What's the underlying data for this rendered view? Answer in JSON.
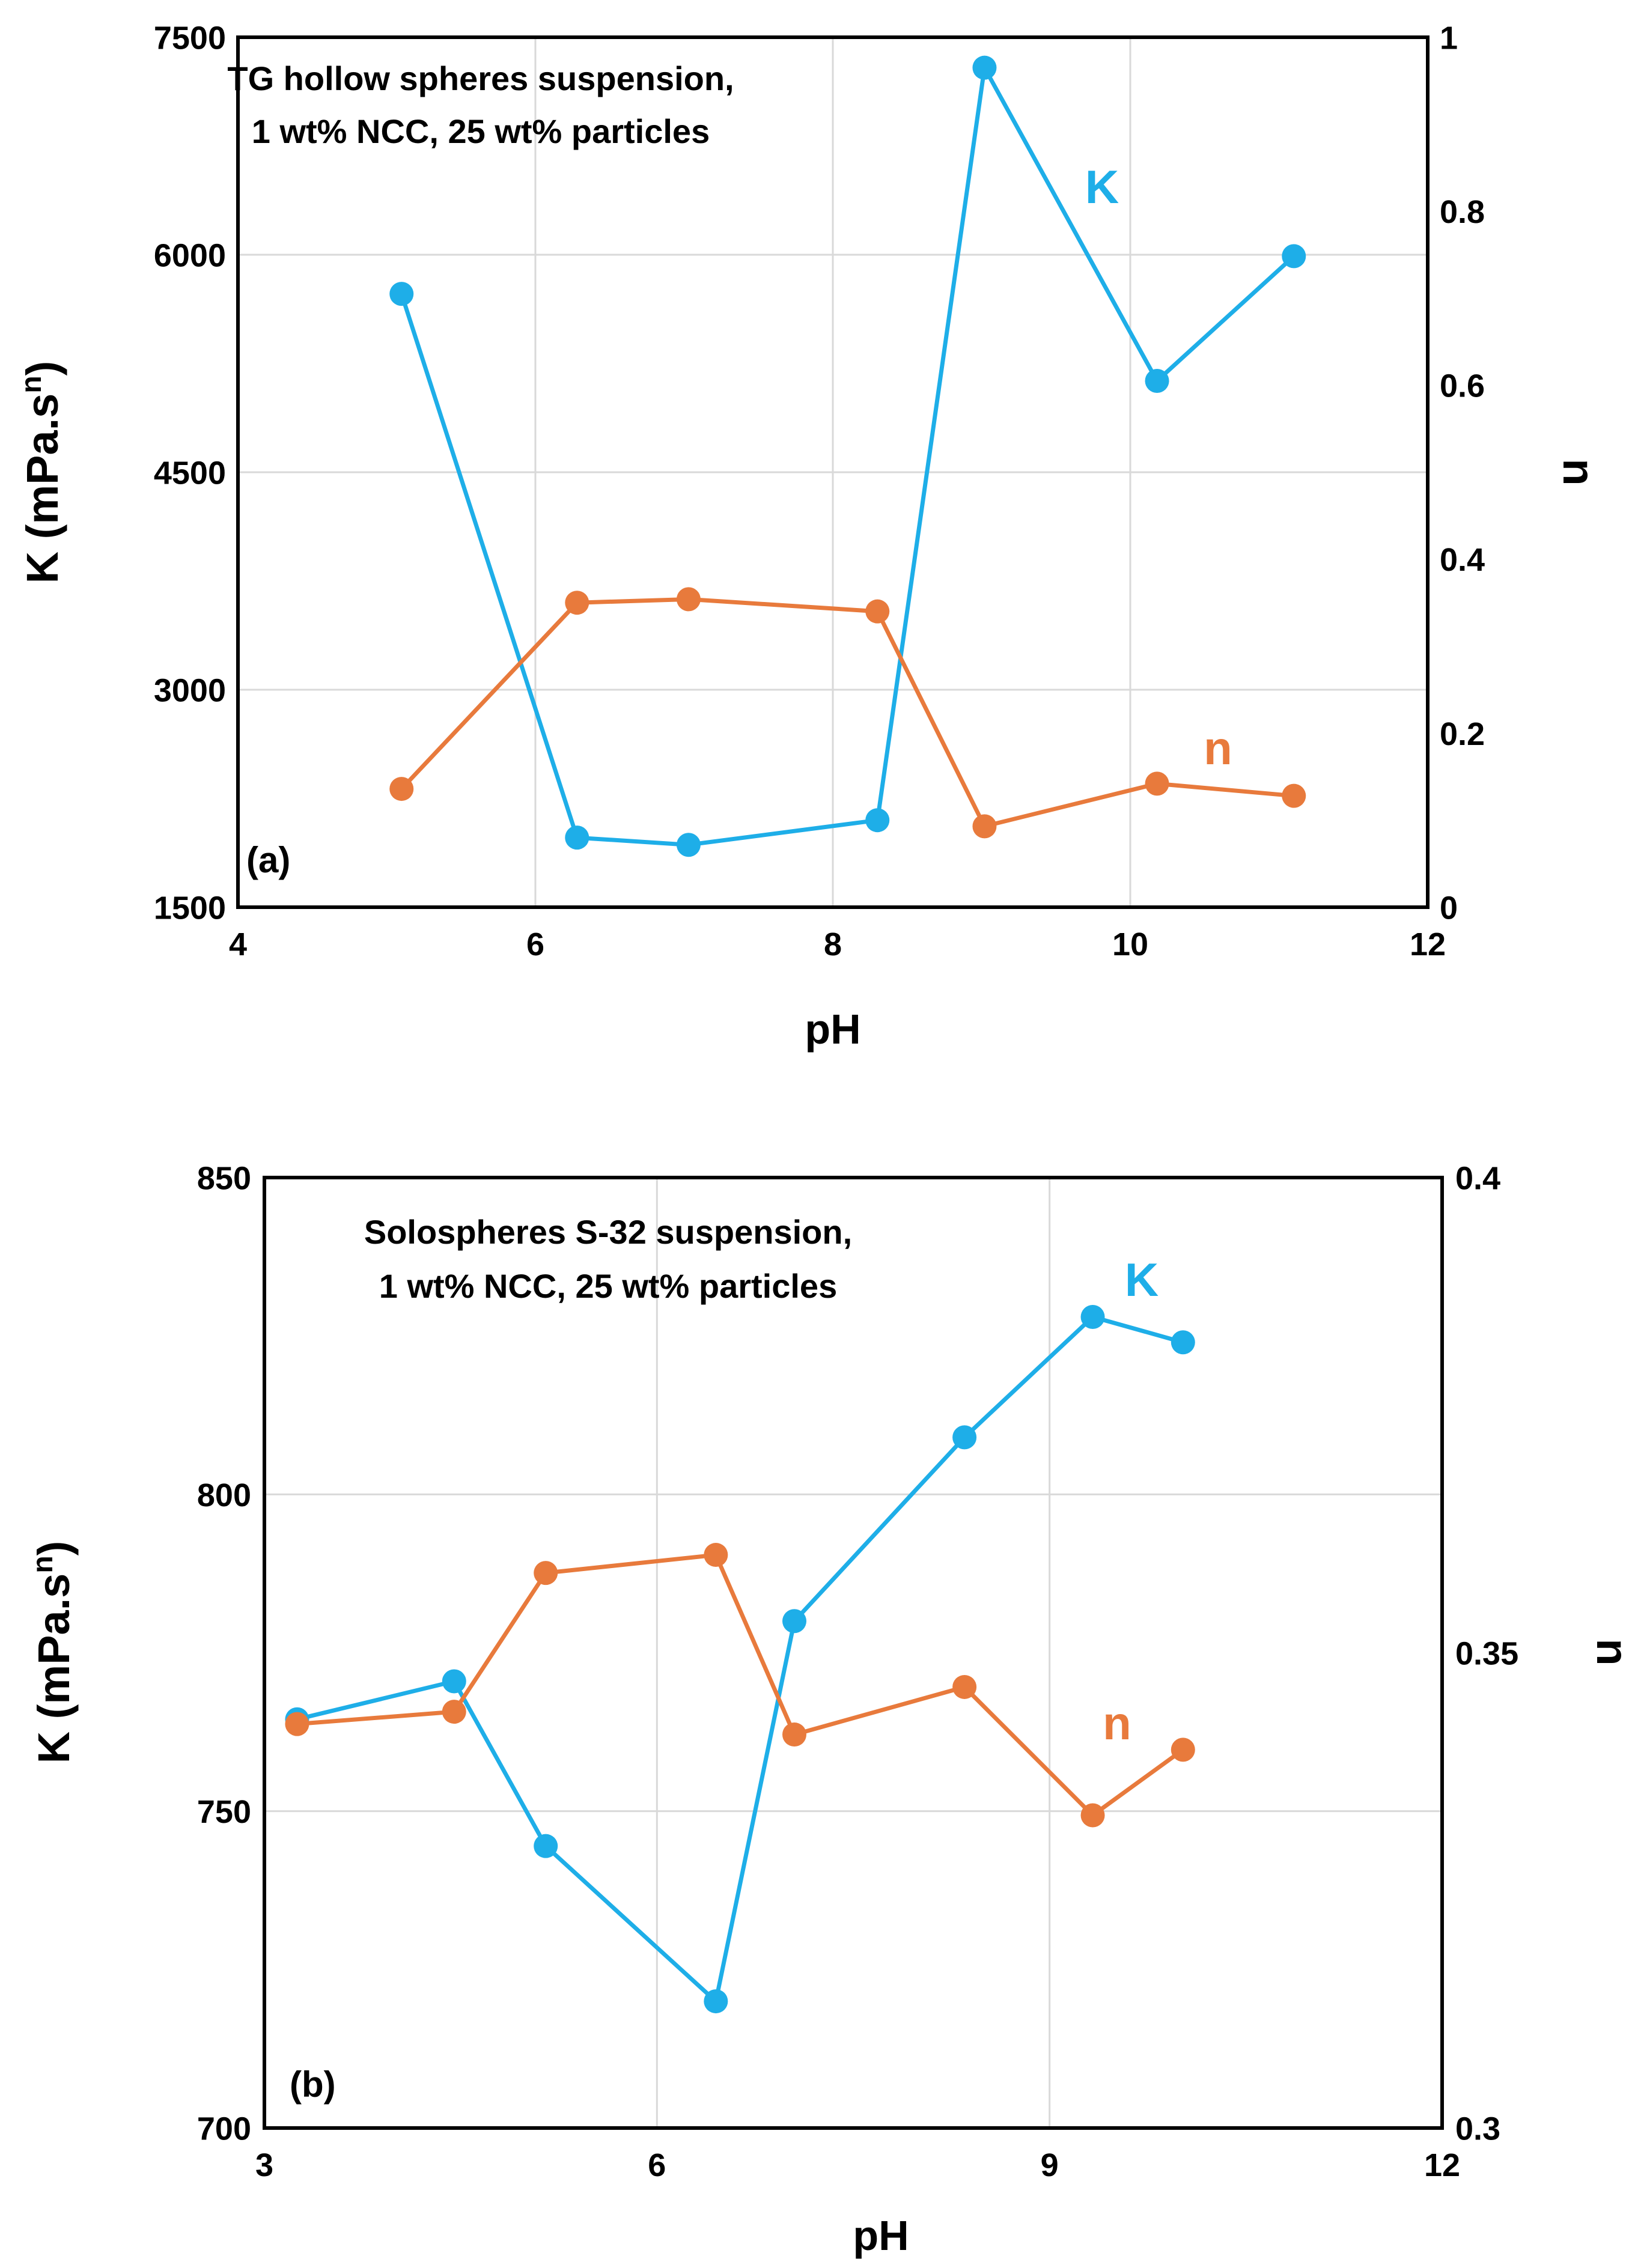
{
  "chart_data": [
    {
      "type": "line",
      "panel_label": "(a)",
      "annotation": [
        "TG hollow spheres suspension,",
        "1 wt% NCC, 25 wt% particles"
      ],
      "xlabel": "pH",
      "ylabel_left": "K (mPa.s",
      "ylabel_left_sup": "n",
      "ylabel_left_close": ")",
      "ylabel_right": "n",
      "xlim": [
        4,
        12
      ],
      "x_ticks": [
        "4",
        "6",
        "8",
        "10",
        "12"
      ],
      "ylim_left": [
        1500,
        7500
      ],
      "y_ticks_left": [
        "1500",
        "3000",
        "4500",
        "6000",
        "7500"
      ],
      "ylim_right": [
        0,
        1
      ],
      "y_ticks_right": [
        "0",
        "0.2",
        "0.4",
        "0.6",
        "0.8",
        "1"
      ],
      "grid": true,
      "series": [
        {
          "name": "K",
          "axis": "left",
          "color": "#1EAEE8",
          "x": [
            5.1,
            6.28,
            7.03,
            8.3,
            9.02,
            10.18,
            11.1
          ],
          "values": [
            5730,
            1980,
            1930,
            2100,
            7290,
            5130,
            5990
          ]
        },
        {
          "name": "n",
          "axis": "right",
          "color": "#E87A3C",
          "x": [
            5.1,
            6.28,
            7.03,
            8.3,
            9.02,
            10.18,
            11.1
          ],
          "values": [
            0.136,
            0.35,
            0.354,
            0.34,
            0.093,
            0.142,
            0.128
          ]
        }
      ]
    },
    {
      "type": "line",
      "panel_label": "(b)",
      "annotation": [
        "Solospheres S-32 suspension,",
        "1 wt% NCC, 25 wt% particles"
      ],
      "xlabel": "pH",
      "ylabel_left": "K (mPa.s",
      "ylabel_left_sup": "n",
      "ylabel_left_close": ")",
      "ylabel_right": "n",
      "xlim": [
        3,
        12
      ],
      "x_ticks": [
        "3",
        "6",
        "9",
        "12"
      ],
      "ylim_left": [
        700,
        850
      ],
      "y_ticks_left": [
        "700",
        "750",
        "800",
        "850"
      ],
      "ylim_right": [
        0.3,
        0.4
      ],
      "y_ticks_right": [
        "0.3",
        "0.35",
        "0.4"
      ],
      "grid": true,
      "series": [
        {
          "name": "K",
          "axis": "left",
          "color": "#1EAEE8",
          "x": [
            3.25,
            4.45,
            5.15,
            6.45,
            7.05,
            8.35,
            9.33,
            10.02
          ],
          "values": [
            764.5,
            770.5,
            744.5,
            720,
            780,
            809,
            828,
            824
          ]
        },
        {
          "name": "n",
          "axis": "right",
          "color": "#E87A3C",
          "x": [
            3.25,
            4.45,
            5.15,
            6.45,
            7.05,
            8.35,
            9.33,
            10.02
          ],
          "values": [
            0.3425,
            0.3438,
            0.3584,
            0.3603,
            0.3414,
            0.3464,
            0.3329,
            0.3398
          ]
        }
      ]
    }
  ]
}
